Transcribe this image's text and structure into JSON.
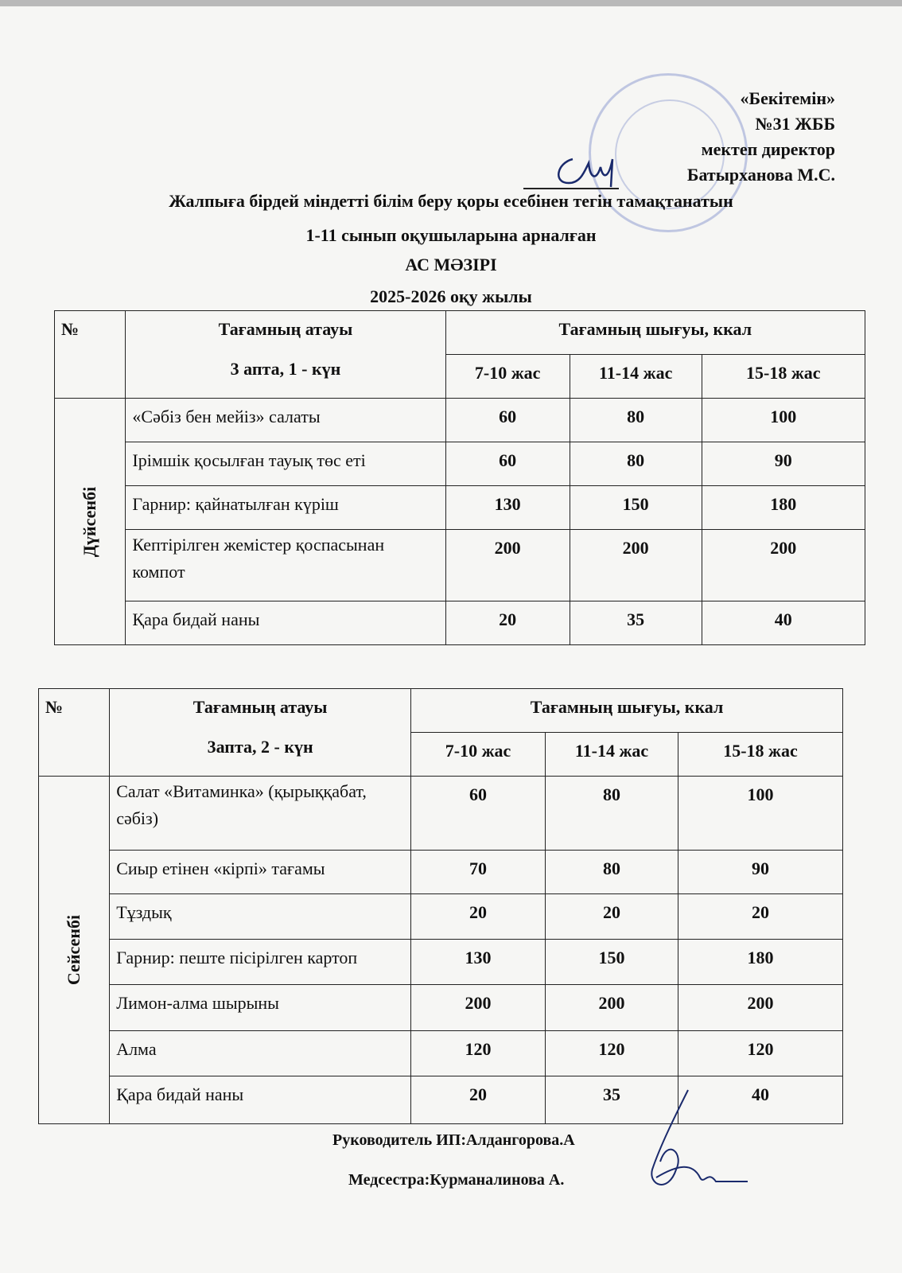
{
  "approval": {
    "line1": "«Бекітемін»",
    "line2": "№31 ЖББ",
    "line3": "мектеп директор",
    "line4": "Батырханова М.С."
  },
  "title": {
    "line1": "Жалпыға бірдей  міндетті білім беру қоры есебінен тегін тамақтанатын",
    "line2": "1-11 сынып оқушыларына арналған",
    "line3": "АС МӘЗІРІ",
    "line4": "2025-2026 оқу жылы"
  },
  "tables": [
    {
      "no_header": "№",
      "name_header": "Тағамның атауы",
      "subheader": "3 апта, 1 - күн",
      "yield_header": "Тағамның шығуы, ккал",
      "age_groups": [
        "7-10 жас",
        "11-14 жас",
        "15-18 жас"
      ],
      "day": "Дүйсенбі",
      "rows": [
        {
          "name": "«Сәбіз бен мейіз» салаты",
          "values": [
            "60",
            "80",
            "100"
          ]
        },
        {
          "name": "Ірімшік қосылған тауық төс еті",
          "values": [
            "60",
            "80",
            "90"
          ]
        },
        {
          "name": "Гарнир: қайнатылған күріш",
          "values": [
            "130",
            "150",
            "180"
          ]
        },
        {
          "name": "Кептірілген жемістер қоспасынан компот",
          "values": [
            "200",
            "200",
            "200"
          ]
        },
        {
          "name": "Қара бидай наны",
          "values": [
            "20",
            "35",
            "40"
          ]
        }
      ]
    },
    {
      "no_header": "№",
      "name_header": "Тағамның атауы",
      "subheader": "3апта, 2 - күн",
      "yield_header": "Тағамның шығуы, ккал",
      "age_groups": [
        "7-10 жас",
        "11-14 жас",
        "15-18 жас"
      ],
      "day": "Сейсенбі",
      "rows": [
        {
          "name": "Салат «Витаминка» (қырыққабат, сәбіз)",
          "values": [
            "60",
            "80",
            "100"
          ]
        },
        {
          "name": "Сиыр етінен «кірпі» тағамы",
          "values": [
            "70",
            "80",
            "90"
          ]
        },
        {
          "name": "Тұздық",
          "values": [
            "20",
            "20",
            "20"
          ]
        },
        {
          "name": "Гарнир: пеште пісірілген картоп",
          "values": [
            "130",
            "150",
            "180"
          ]
        },
        {
          "name": "Лимон-алма шырыны",
          "values": [
            "200",
            "200",
            "200"
          ]
        },
        {
          "name": "Алма",
          "values": [
            "120",
            "120",
            "120"
          ]
        },
        {
          "name": "Қара бидай наны",
          "values": [
            "20",
            "35",
            "40"
          ]
        }
      ]
    }
  ],
  "footer": {
    "manager": "Руководитель ИП:Алдангорова.А",
    "nurse": "Медсестра:Курманалинова А."
  }
}
